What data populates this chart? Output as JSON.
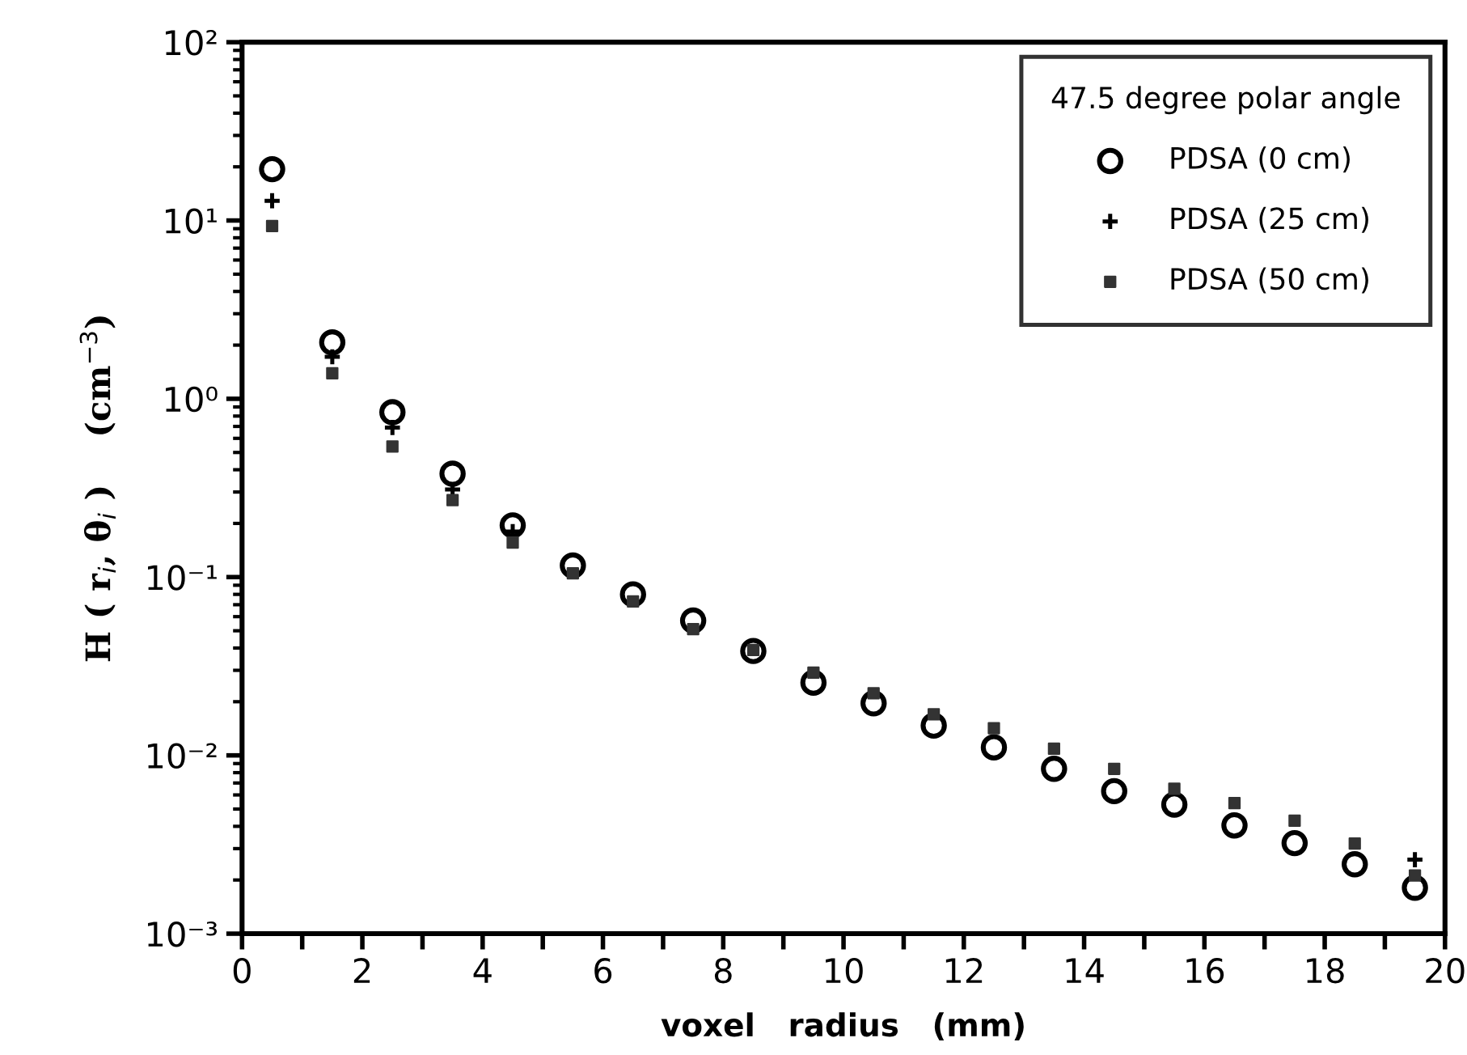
{
  "chart_data": {
    "type": "scatter",
    "xlabel": "voxel   radius   (mm)",
    "ylabel": "H ( r$_{i}$, θ$_{i}$ )    (cm$^{−3}$)",
    "legend_title": "47.5 degree polar angle",
    "x": [
      0.5,
      1.5,
      2.5,
      3.5,
      4.5,
      5.5,
      6.5,
      7.5,
      8.5,
      9.5,
      10.5,
      11.5,
      12.5,
      13.5,
      14.5,
      15.5,
      16.5,
      17.5,
      18.5,
      19.5
    ],
    "series": [
      {
        "name": "PDSA (0 cm)",
        "color": "#000000",
        "marker": "circle",
        "values": [
          19.4,
          2.07,
          0.84,
          0.38,
          0.195,
          0.116,
          0.08,
          0.057,
          0.0385,
          0.0256,
          0.0196,
          0.0147,
          0.0111,
          0.0084,
          0.0063,
          0.0053,
          0.00405,
          0.00322,
          0.00245,
          0.00181
        ]
      },
      {
        "name": "PDSA (25 cm)",
        "color": "#000000",
        "marker": "cross",
        "values": [
          12.9,
          1.72,
          0.69,
          0.31,
          0.18,
          null,
          null,
          null,
          null,
          null,
          null,
          null,
          null,
          null,
          null,
          null,
          null,
          null,
          null,
          0.0026
        ]
      },
      {
        "name": "PDSA (50 cm)",
        "color": "#333333",
        "marker": "square",
        "values": [
          9.3,
          1.39,
          0.54,
          0.27,
          0.156,
          0.105,
          0.073,
          0.051,
          0.039,
          0.0291,
          0.0223,
          0.017,
          0.0142,
          0.0109,
          0.0084,
          0.0065,
          0.0054,
          0.0043,
          0.0032,
          0.00212
        ]
      }
    ],
    "log": "y",
    "xlim": [
      0,
      20
    ],
    "xticks": [
      0,
      {
        "value": 1,
        "label": null
      },
      2,
      {
        "value": 3,
        "label": null
      },
      4,
      {
        "value": 5,
        "label": null
      },
      6,
      {
        "value": 7,
        "label": null
      },
      8,
      {
        "value": 9,
        "label": null
      },
      10,
      {
        "value": 11,
        "label": null
      },
      12,
      {
        "value": 13,
        "label": null
      },
      14,
      {
        "value": 15,
        "label": null
      },
      16,
      {
        "value": 17,
        "label": null
      },
      18,
      {
        "value": 19,
        "label": null
      },
      20
    ],
    "ylim": [
      0.001,
      100
    ],
    "yticks": [
      {
        "value": 0.001,
        "label": "10⁻³"
      },
      {
        "value": 0.01,
        "label": "10⁻²"
      },
      {
        "value": 0.1,
        "label": "10⁻¹"
      },
      {
        "value": 1,
        "label": "10⁰"
      },
      {
        "value": 10,
        "label": "10¹"
      },
      {
        "value": 100,
        "label": "10²"
      }
    ],
    "grid": false,
    "legend": "top right"
  }
}
